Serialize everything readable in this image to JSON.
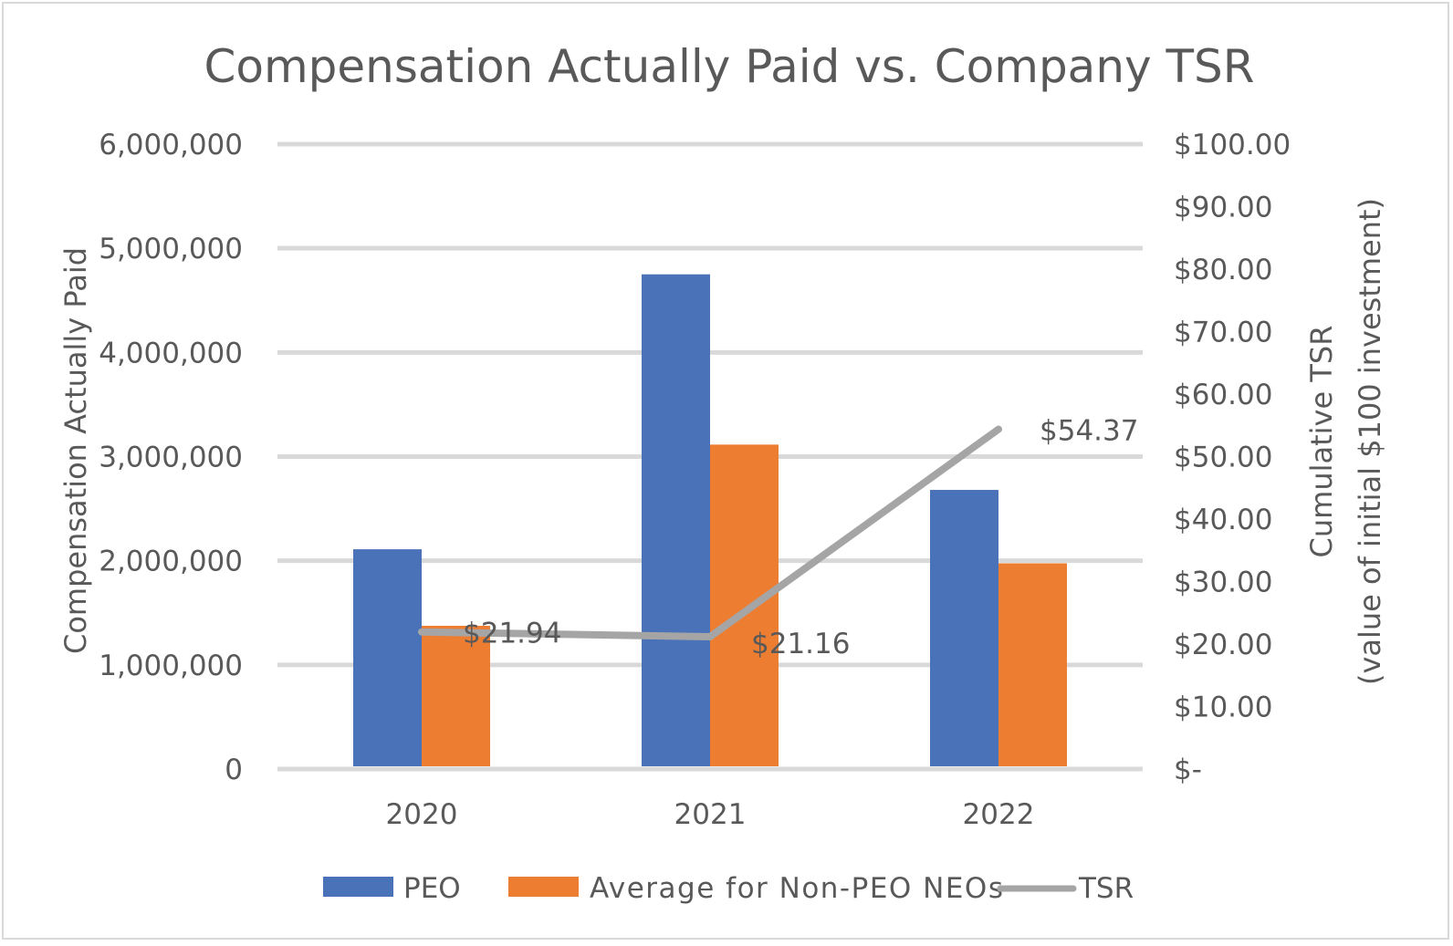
{
  "chart_data": {
    "type": "bar",
    "title": "Compensation Actually Paid vs. Company TSR",
    "categories": [
      "2020",
      "2021",
      "2022"
    ],
    "series": [
      {
        "name": "PEO",
        "kind": "bar",
        "axis": "left",
        "color": "#4a72b8",
        "values": [
          2110000,
          4750000,
          2680000
        ]
      },
      {
        "name": "Average for Non-PEO NEOs",
        "kind": "bar",
        "axis": "left",
        "color": "#ed7d31",
        "values": [
          1375000,
          3115000,
          1975000
        ]
      },
      {
        "name": "TSR",
        "kind": "line",
        "axis": "right",
        "color": "#a5a5a5",
        "values": [
          21.94,
          21.16,
          54.37
        ],
        "labels": [
          "$21.94",
          "$21.16",
          "$54.37"
        ]
      }
    ],
    "ylabel": "Compensation Actually Paid",
    "ylim": [
      0,
      6000000
    ],
    "yticks": [
      "6,000,000",
      "5,000,000",
      "4,000,000",
      "3,000,000",
      "2,000,000",
      "1,000,000",
      "0"
    ],
    "y2label_line1": "Cumulative TSR",
    "y2label_line2": "(value of initial $100 investment)",
    "y2lim": [
      0,
      100
    ],
    "y2ticks": [
      "$100.00",
      "$90.00",
      "$80.00",
      "$70.00",
      "$60.00",
      "$50.00",
      "$40.00",
      "$30.00",
      "$20.00",
      "$10.00",
      "$-"
    ],
    "grid": true,
    "legend_position": "bottom"
  }
}
